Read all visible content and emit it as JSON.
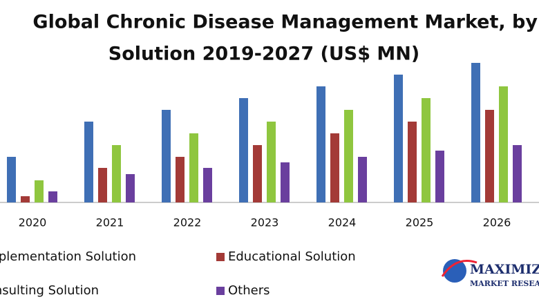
{
  "chart_data": {
    "type": "bar",
    "title": [
      "Global Chronic Disease Management Market, by",
      "Solution 2019-2027 (US$ MN)"
    ],
    "categories": [
      "2020",
      "2021",
      "2022",
      "2023",
      "2024",
      "2025",
      "2026"
    ],
    "series": [
      {
        "name": "Implementation Solution",
        "color": "#3f6fb5",
        "values": [
          66,
          117,
          134,
          151,
          168,
          185,
          202
        ]
      },
      {
        "name": "Educational Solution",
        "color": "#a33a37",
        "values": [
          9,
          50,
          66,
          83,
          100,
          117,
          134
        ]
      },
      {
        "name": "Consulting Solution",
        "color": "#8fc63f",
        "values": [
          32,
          83,
          100,
          117,
          134,
          151,
          168
        ]
      },
      {
        "name": "Others",
        "color": "#6a3f9e",
        "values": [
          16,
          41,
          50,
          58,
          66,
          75,
          83
        ]
      }
    ],
    "logo": [
      "MAXIMIZE",
      "MARKET RESEARCH"
    ]
  }
}
